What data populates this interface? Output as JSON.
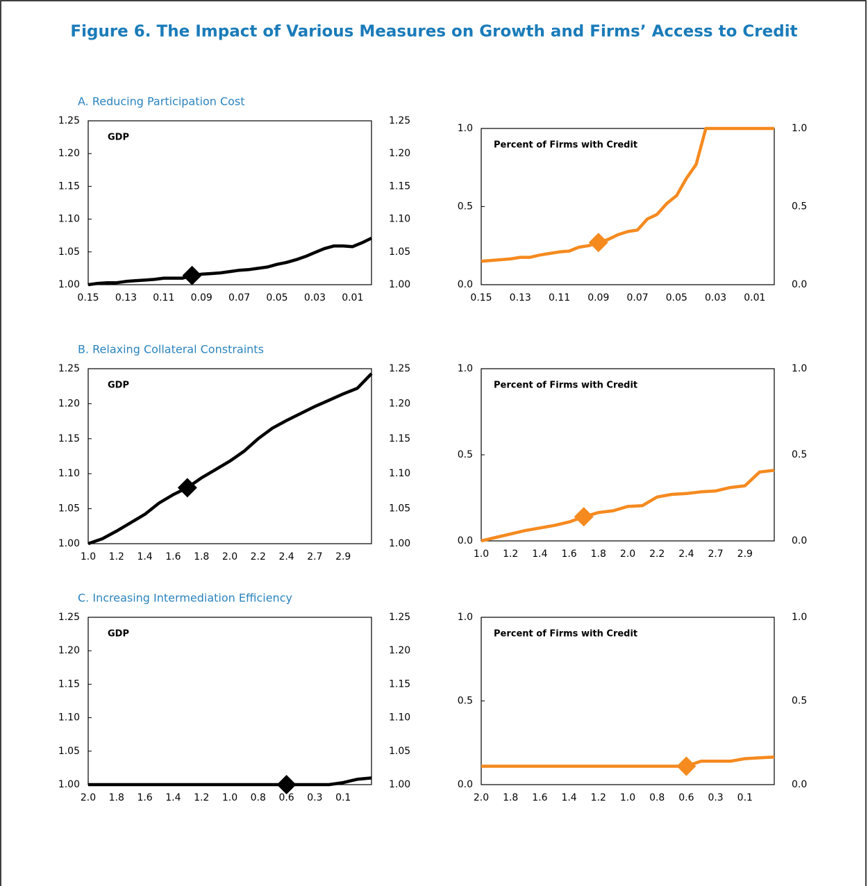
{
  "title": "Figure 6.  The Impact of Various Measures on Growth and Firms’ Access to Credit",
  "chart_data": [
    {
      "type": "line",
      "subtitle": "A. Reducing Participation Cost",
      "title": "GDP",
      "categories": [
        "0.15",
        null,
        null,
        null,
        "0.13",
        null,
        null,
        null,
        "0.11",
        null,
        null,
        null,
        "0.09",
        null,
        null,
        null,
        "0.07",
        null,
        null,
        null,
        "0.05",
        null,
        null,
        null,
        "0.03",
        null,
        null,
        null,
        "0.01",
        null,
        null
      ],
      "values": [
        1.0,
        1.002,
        1.003,
        1.003,
        1.005,
        1.006,
        1.007,
        1.008,
        1.01,
        1.01,
        1.01,
        1.014,
        1.016,
        1.017,
        1.018,
        1.02,
        1.022,
        1.023,
        1.025,
        1.027,
        1.031,
        1.034,
        1.038,
        1.043,
        1.049,
        1.055,
        1.059,
        1.059,
        1.058,
        1.064,
        1.071
      ],
      "color": "#000000",
      "highlight_index": 11,
      "ylim": [
        1.0,
        1.25
      ],
      "yticks": [
        {
          "value": 1.0,
          "label": "1.00"
        },
        {
          "value": 1.05,
          "label": "1.05"
        },
        {
          "value": 1.1,
          "label": "1.10"
        },
        {
          "value": 1.15,
          "label": "1.15"
        },
        {
          "value": 1.2,
          "label": "1.20"
        },
        {
          "value": 1.25,
          "label": "1.25"
        }
      ]
    },
    {
      "type": "line",
      "title": "Percent of Firms with Credit",
      "categories": [
        "0.15",
        null,
        null,
        null,
        "0.13",
        null,
        null,
        null,
        "0.11",
        null,
        null,
        null,
        "0.09",
        null,
        null,
        null,
        "0.07",
        null,
        null,
        null,
        "0.05",
        null,
        null,
        null,
        "0.03",
        null,
        null,
        null,
        "0.01",
        null,
        null
      ],
      "values": [
        0.15,
        0.155,
        0.16,
        0.165,
        0.175,
        0.175,
        0.19,
        0.2,
        0.21,
        0.215,
        0.24,
        0.25,
        0.27,
        0.29,
        0.32,
        0.34,
        0.35,
        0.42,
        0.45,
        0.52,
        0.57,
        0.68,
        0.77,
        1.0,
        1.0,
        1.0,
        1.0,
        1.0,
        1.0,
        1.0,
        1.0
      ],
      "color": "#f58a1f",
      "highlight_index": 12,
      "ylim": [
        0,
        1.0
      ],
      "yticks": [
        {
          "value": 0,
          "label": "0.0"
        },
        {
          "value": 0.5,
          "label": "0.5"
        },
        {
          "value": 1.0,
          "label": "1.0"
        }
      ]
    },
    {
      "type": "line",
      "subtitle": "B. Relaxing Collateral Constraints",
      "title": "GDP",
      "categories": [
        "1.0",
        null,
        "1.2",
        null,
        "1.4",
        null,
        "1.6",
        null,
        "1.8",
        null,
        "2.0",
        null,
        "2.2",
        null,
        "2.4",
        null,
        "2.7",
        null,
        "2.9",
        null,
        null
      ],
      "values": [
        1.0,
        1.007,
        1.018,
        1.03,
        1.042,
        1.058,
        1.07,
        1.08,
        1.094,
        1.106,
        1.118,
        1.132,
        1.15,
        1.165,
        1.176,
        1.186,
        1.196,
        1.205,
        1.214,
        1.222,
        1.243
      ],
      "color": "#000000",
      "highlight_index": 7,
      "ylim": [
        1.0,
        1.25
      ],
      "yticks": [
        {
          "value": 1.0,
          "label": "1.00"
        },
        {
          "value": 1.05,
          "label": "1.05"
        },
        {
          "value": 1.1,
          "label": "1.10"
        },
        {
          "value": 1.15,
          "label": "1.15"
        },
        {
          "value": 1.2,
          "label": "1.20"
        },
        {
          "value": 1.25,
          "label": "1.25"
        }
      ]
    },
    {
      "type": "line",
      "title": "Percent of Firms with Credit",
      "categories": [
        "1.0",
        null,
        "1.2",
        null,
        "1.4",
        null,
        "1.6",
        null,
        "1.8",
        null,
        "2.0",
        null,
        "2.2",
        null,
        "2.4",
        null,
        "2.7",
        null,
        "2.9",
        null,
        null
      ],
      "values": [
        0,
        0.02,
        0.04,
        0.06,
        0.075,
        0.09,
        0.11,
        0.14,
        0.165,
        0.175,
        0.2,
        0.205,
        0.255,
        0.27,
        0.275,
        0.285,
        0.29,
        0.31,
        0.32,
        0.4,
        0.41
      ],
      "color": "#f58a1f",
      "highlight_index": 7,
      "ylim": [
        0,
        1.0
      ],
      "yticks": [
        {
          "value": 0,
          "label": "0.0"
        },
        {
          "value": 0.5,
          "label": "0.5"
        },
        {
          "value": 1.0,
          "label": "1.0"
        }
      ]
    },
    {
      "type": "line",
      "subtitle": "C. Increasing Intermediation Efficiency",
      "title": "GDP",
      "categories": [
        "2.0",
        null,
        "1.8",
        null,
        "1.6",
        null,
        "1.4",
        null,
        "1.2",
        null,
        "1.0",
        null,
        "0.8",
        null,
        "0.6",
        null,
        "0.3",
        null,
        "0.1",
        null,
        null
      ],
      "values": [
        1.0,
        1.0,
        1.0,
        1.0,
        1.0,
        1.0,
        1.0,
        1.0,
        1.0,
        1.0,
        1.0,
        1.0,
        1.0,
        1.0,
        1.0,
        1.0,
        1.0,
        1.0,
        1.003,
        1.008,
        1.01
      ],
      "color": "#000000",
      "highlight_index": 14,
      "ylim": [
        1.0,
        1.25
      ],
      "yticks": [
        {
          "value": 1.0,
          "label": "1.00"
        },
        {
          "value": 1.05,
          "label": "1.05"
        },
        {
          "value": 1.1,
          "label": "1.10"
        },
        {
          "value": 1.15,
          "label": "1.15"
        },
        {
          "value": 1.2,
          "label": "1.20"
        },
        {
          "value": 1.25,
          "label": "1.25"
        }
      ]
    },
    {
      "type": "line",
      "title": "Percent of Firms with Credit",
      "categories": [
        "2.0",
        null,
        "1.8",
        null,
        "1.6",
        null,
        "1.4",
        null,
        "1.2",
        null,
        "1.0",
        null,
        "0.8",
        null,
        "0.6",
        null,
        "0.3",
        null,
        "0.1",
        null,
        null
      ],
      "values": [
        0.11,
        0.11,
        0.11,
        0.11,
        0.11,
        0.11,
        0.11,
        0.11,
        0.11,
        0.11,
        0.11,
        0.11,
        0.11,
        0.11,
        0.11,
        0.14,
        0.14,
        0.14,
        0.155,
        0.16,
        0.165
      ],
      "color": "#f58a1f",
      "highlight_index": 14,
      "ylim": [
        0,
        1.0
      ],
      "yticks": [
        {
          "value": 0,
          "label": "0.0"
        },
        {
          "value": 0.5,
          "label": "0.5"
        },
        {
          "value": 1.0,
          "label": "1.0"
        }
      ]
    }
  ]
}
